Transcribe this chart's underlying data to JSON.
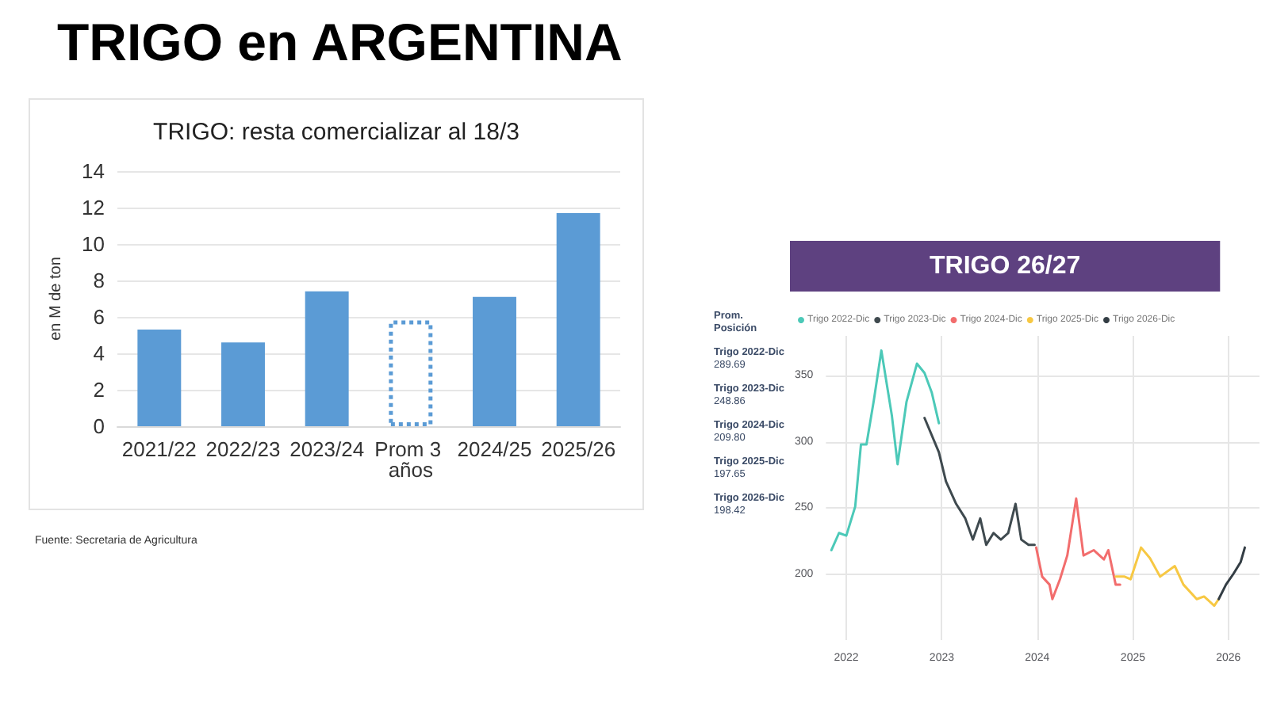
{
  "chart_data": [
    {
      "type": "bar",
      "title": "TRIGO: resta comercializar al 18/3",
      "ylabel": "en M de ton",
      "categories": [
        "2021/22",
        "2022/23",
        "2023/24",
        "Prom 3 años",
        "2024/25",
        "2025/26"
      ],
      "stacked": true,
      "series": [
        {
          "color": "#5b9bd5",
          "values": [
            5.3,
            4.6,
            7.4,
            null,
            7.1,
            11.7
          ]
        },
        {
          "color": "#5b9bd5",
          "line_style": "dotted",
          "values": [
            null,
            null,
            null,
            5.8,
            null,
            null
          ]
        }
      ],
      "ylim": [
        0,
        14
      ],
      "yticks": [
        0,
        2,
        4,
        6,
        8,
        10,
        12,
        14
      ],
      "grid": "y",
      "annotations": [
        "TRIGO en ARGENTINA",
        "Fuente: Secretaria de Agricultura"
      ]
    },
    {
      "type": "line",
      "title": "TRIGO 26/27",
      "marker": "none",
      "legend": "top",
      "grid": true,
      "xlim": [
        "2021-10-15",
        "2026-04-30"
      ],
      "xticks": [
        "2022",
        "2023",
        "2024",
        "2025",
        "2026"
      ],
      "ylim": [
        150,
        380
      ],
      "yticks": [
        200,
        250,
        300,
        350
      ],
      "series": [
        {
          "name": "Trigo 2022-Dic",
          "color": "#4cc9b8",
          "x": [
            "2021-11-05",
            "2021-12-04",
            "2022-01-01",
            "2022-02-04",
            "2022-02-26",
            "2022-03-19",
            "2022-04-16",
            "2022-05-15",
            "2022-06-06",
            "2022-06-24",
            "2022-07-16",
            "2022-08-19",
            "2022-09-28",
            "2022-10-27",
            "2022-11-24",
            "2022-12-21"
          ],
          "values": [
            218,
            231,
            229,
            251,
            298,
            298,
            331,
            369,
            342,
            320,
            283,
            330,
            359,
            352,
            337,
            314
          ]
        },
        {
          "name": "Trigo 2023-Dic",
          "color": "#3f4a4f",
          "x": [
            "2022-10-27",
            "2022-12-21",
            "2023-01-17",
            "2023-02-25",
            "2023-04-01",
            "2023-04-30",
            "2023-05-28",
            "2023-06-20",
            "2023-07-18",
            "2023-08-15",
            "2023-09-12",
            "2023-10-10",
            "2023-11-01",
            "2023-11-29",
            "2023-12-22"
          ],
          "values": [
            318,
            292,
            270,
            253,
            242,
            226,
            242,
            222,
            231,
            226,
            231,
            253,
            226,
            222,
            222
          ]
        },
        {
          "name": "Trigo 2024-Dic",
          "color": "#f26d6d",
          "x": [
            "2023-12-28",
            "2024-01-20",
            "2024-02-17",
            "2024-02-28",
            "2024-03-28",
            "2024-04-25",
            "2024-05-29",
            "2024-06-26",
            "2024-08-04",
            "2024-09-12",
            "2024-09-29",
            "2024-10-27",
            "2024-11-13"
          ],
          "values": [
            220,
            198,
            192,
            181,
            196,
            214,
            257,
            214,
            218,
            211,
            218,
            192,
            192
          ]
        },
        {
          "name": "Trigo 2025-Dic",
          "color": "#f7c843",
          "x": [
            "2024-10-27",
            "2024-11-30",
            "2024-12-23",
            "2025-02-01",
            "2025-03-07",
            "2025-04-15",
            "2025-06-10",
            "2025-07-13",
            "2025-09-02",
            "2025-09-30",
            "2025-11-08",
            "2025-11-25"
          ],
          "values": [
            198,
            198,
            196,
            220,
            212,
            198,
            206,
            192,
            181,
            183,
            176,
            181
          ]
        },
        {
          "name": "Trigo 2026-Dic",
          "color": "#333d44",
          "x": [
            "2025-11-25",
            "2025-12-23",
            "2026-01-20",
            "2026-02-17",
            "2026-03-05"
          ],
          "values": [
            181,
            192,
            200,
            209,
            220
          ]
        }
      ],
      "annotations": [
        "Prom. Posición",
        "Trigo 2022-Dic",
        "289.69",
        "Trigo 2023-Dic",
        "248.86",
        "Trigo 2024-Dic",
        "209.80",
        "Trigo 2025-Dic",
        "197.65",
        "Trigo 2026-Dic",
        "198.42"
      ]
    }
  ]
}
